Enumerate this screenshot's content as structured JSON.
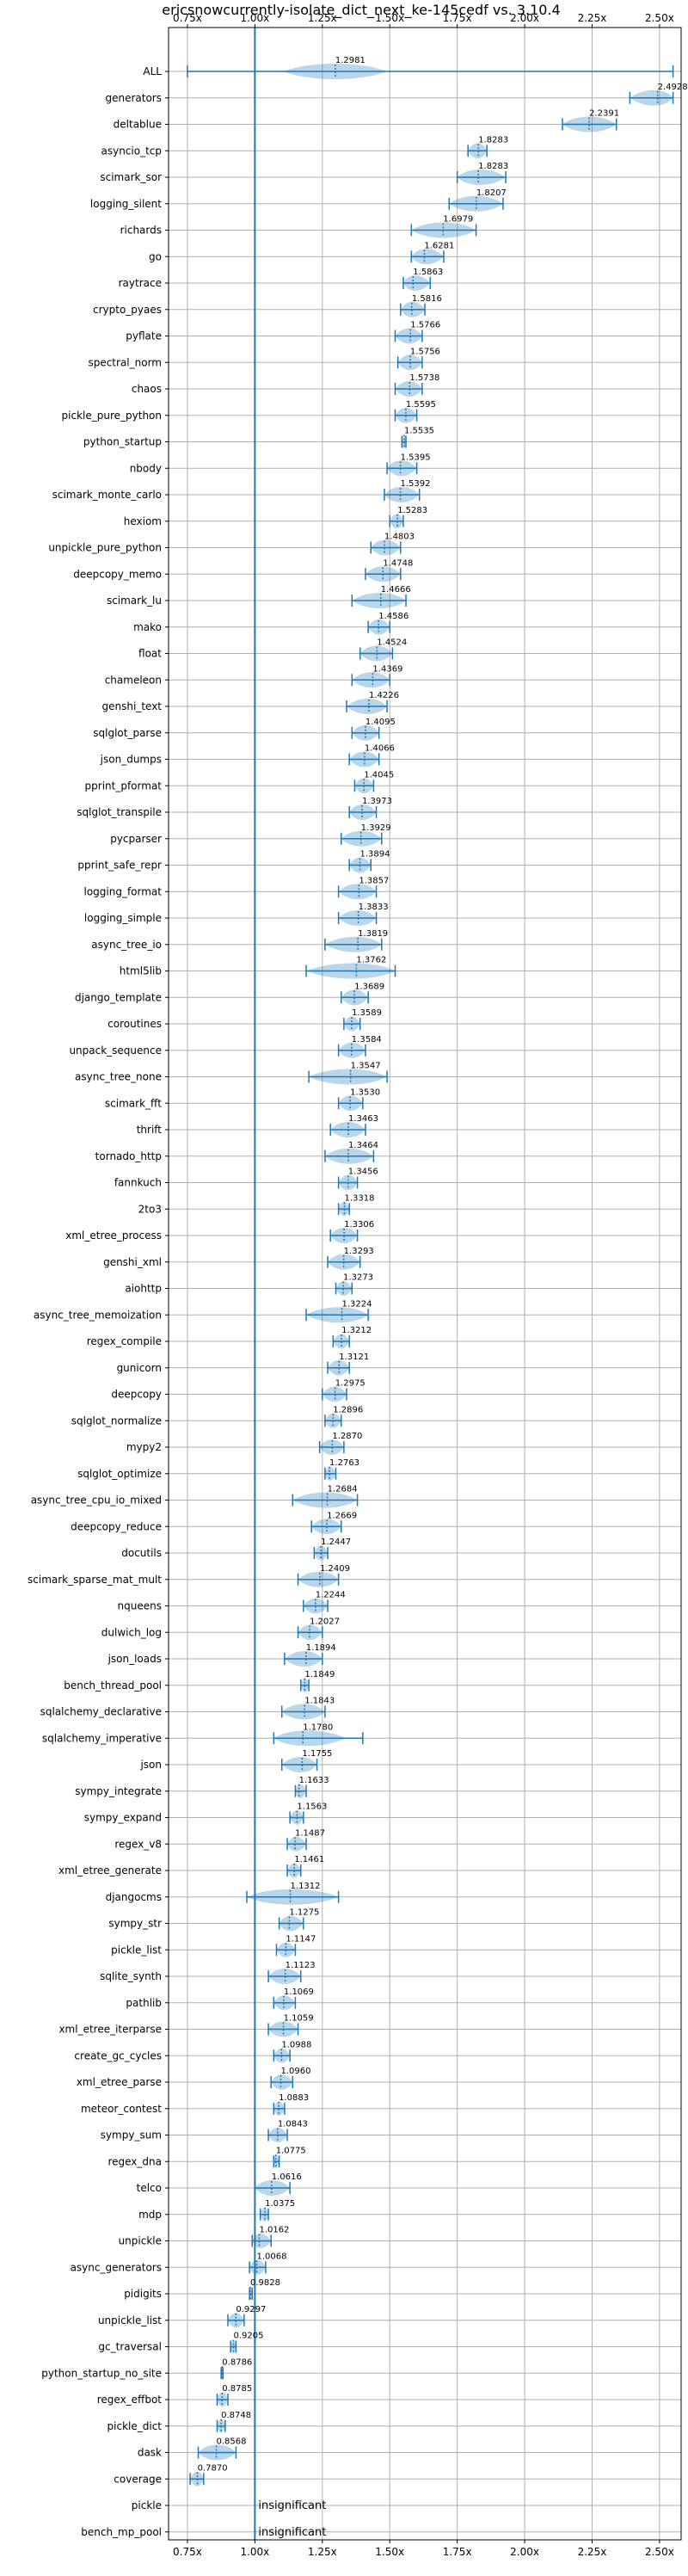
{
  "chart_data": {
    "type": "violin",
    "title": "ericsnowcurrently-isolate_dict_next_ke-145cedf vs. 3.10.4",
    "xlabel": "",
    "ylabel": "",
    "xlim": [
      0.68,
      2.58
    ],
    "xticks": [
      0.75,
      1.0,
      1.25,
      1.5,
      1.75,
      2.0,
      2.25,
      2.5
    ],
    "xtick_labels": [
      "0.75x",
      "1.00x",
      "1.25x",
      "1.50x",
      "1.75x",
      "2.00x",
      "2.25x",
      "2.50x"
    ],
    "reference_line": 1.0,
    "grid": true,
    "benchmarks": [
      {
        "name": "ALL",
        "value": 1.2981,
        "label": "1.2981",
        "low": 0.75,
        "high": 2.55,
        "spread": 0.12
      },
      {
        "name": "generators",
        "value": 2.4928,
        "label": "2.4928",
        "low": 2.39,
        "high": 2.55,
        "spread": 0.08
      },
      {
        "name": "deltablue",
        "value": 2.2391,
        "label": "2.2391",
        "low": 2.14,
        "high": 2.34,
        "spread": 0.1
      },
      {
        "name": "asyncio_tcp",
        "value": 1.8283,
        "label": "1.8283",
        "low": 1.79,
        "high": 1.86,
        "spread": 0.04
      },
      {
        "name": "scimark_sor",
        "value": 1.8283,
        "label": "1.8283",
        "low": 1.75,
        "high": 1.93,
        "spread": 0.09
      },
      {
        "name": "logging_silent",
        "value": 1.8207,
        "label": "1.8207",
        "low": 1.72,
        "high": 1.92,
        "spread": 0.1
      },
      {
        "name": "richards",
        "value": 1.6979,
        "label": "1.6979",
        "low": 1.58,
        "high": 1.82,
        "spread": 0.12
      },
      {
        "name": "go",
        "value": 1.6281,
        "label": "1.6281",
        "low": 1.58,
        "high": 1.7,
        "spread": 0.06
      },
      {
        "name": "raytrace",
        "value": 1.5863,
        "label": "1.5863",
        "low": 1.55,
        "high": 1.65,
        "spread": 0.05
      },
      {
        "name": "crypto_pyaes",
        "value": 1.5816,
        "label": "1.5816",
        "low": 1.54,
        "high": 1.63,
        "spread": 0.05
      },
      {
        "name": "pyflate",
        "value": 1.5766,
        "label": "1.5766",
        "low": 1.52,
        "high": 1.62,
        "spread": 0.05
      },
      {
        "name": "spectral_norm",
        "value": 1.5756,
        "label": "1.5756",
        "low": 1.53,
        "high": 1.62,
        "spread": 0.05
      },
      {
        "name": "chaos",
        "value": 1.5738,
        "label": "1.5738",
        "low": 1.52,
        "high": 1.62,
        "spread": 0.05
      },
      {
        "name": "pickle_pure_python",
        "value": 1.5595,
        "label": "1.5595",
        "low": 1.52,
        "high": 1.6,
        "spread": 0.04
      },
      {
        "name": "python_startup",
        "value": 1.5535,
        "label": "1.5535",
        "low": 1.545,
        "high": 1.56,
        "spread": 0.008
      },
      {
        "name": "nbody",
        "value": 1.5395,
        "label": "1.5395",
        "low": 1.49,
        "high": 1.6,
        "spread": 0.05
      },
      {
        "name": "scimark_monte_carlo",
        "value": 1.5392,
        "label": "1.5392",
        "low": 1.48,
        "high": 1.61,
        "spread": 0.06
      },
      {
        "name": "hexiom",
        "value": 1.5283,
        "label": "1.5283",
        "low": 1.5,
        "high": 1.55,
        "spread": 0.03
      },
      {
        "name": "unpickle_pure_python",
        "value": 1.4803,
        "label": "1.4803",
        "low": 1.43,
        "high": 1.54,
        "spread": 0.05
      },
      {
        "name": "deepcopy_memo",
        "value": 1.4748,
        "label": "1.4748",
        "low": 1.41,
        "high": 1.54,
        "spread": 0.06
      },
      {
        "name": "scimark_lu",
        "value": 1.4666,
        "label": "1.4666",
        "low": 1.36,
        "high": 1.56,
        "spread": 0.1
      },
      {
        "name": "mako",
        "value": 1.4586,
        "label": "1.4586",
        "low": 1.42,
        "high": 1.5,
        "spread": 0.04
      },
      {
        "name": "float",
        "value": 1.4524,
        "label": "1.4524",
        "low": 1.39,
        "high": 1.51,
        "spread": 0.06
      },
      {
        "name": "chameleon",
        "value": 1.4369,
        "label": "1.4369",
        "low": 1.36,
        "high": 1.5,
        "spread": 0.07
      },
      {
        "name": "genshi_text",
        "value": 1.4226,
        "label": "1.4226",
        "low": 1.34,
        "high": 1.49,
        "spread": 0.07
      },
      {
        "name": "sqlglot_parse",
        "value": 1.4095,
        "label": "1.4095",
        "low": 1.36,
        "high": 1.46,
        "spread": 0.05
      },
      {
        "name": "json_dumps",
        "value": 1.4066,
        "label": "1.4066",
        "low": 1.35,
        "high": 1.46,
        "spread": 0.05
      },
      {
        "name": "pprint_pformat",
        "value": 1.4045,
        "label": "1.4045",
        "low": 1.37,
        "high": 1.44,
        "spread": 0.04
      },
      {
        "name": "sqlglot_transpile",
        "value": 1.3973,
        "label": "1.3973",
        "low": 1.35,
        "high": 1.45,
        "spread": 0.05
      },
      {
        "name": "pycparser",
        "value": 1.3929,
        "label": "1.3929",
        "low": 1.32,
        "high": 1.47,
        "spread": 0.07
      },
      {
        "name": "pprint_safe_repr",
        "value": 1.3894,
        "label": "1.3894",
        "low": 1.35,
        "high": 1.43,
        "spread": 0.04
      },
      {
        "name": "logging_format",
        "value": 1.3857,
        "label": "1.3857",
        "low": 1.31,
        "high": 1.45,
        "spread": 0.06
      },
      {
        "name": "logging_simple",
        "value": 1.3833,
        "label": "1.3833",
        "low": 1.31,
        "high": 1.45,
        "spread": 0.06
      },
      {
        "name": "async_tree_io",
        "value": 1.3819,
        "label": "1.3819",
        "low": 1.26,
        "high": 1.47,
        "spread": 0.09
      },
      {
        "name": "html5lib",
        "value": 1.3762,
        "label": "1.3762",
        "low": 1.19,
        "high": 1.52,
        "spread": 0.14
      },
      {
        "name": "django_template",
        "value": 1.3689,
        "label": "1.3689",
        "low": 1.32,
        "high": 1.42,
        "spread": 0.05
      },
      {
        "name": "coroutines",
        "value": 1.3589,
        "label": "1.3589",
        "low": 1.33,
        "high": 1.39,
        "spread": 0.03
      },
      {
        "name": "unpack_sequence",
        "value": 1.3584,
        "label": "1.3584",
        "low": 1.31,
        "high": 1.41,
        "spread": 0.05
      },
      {
        "name": "async_tree_none",
        "value": 1.3547,
        "label": "1.3547",
        "low": 1.2,
        "high": 1.49,
        "spread": 0.12
      },
      {
        "name": "scimark_fft",
        "value": 1.353,
        "label": "1.3530",
        "low": 1.31,
        "high": 1.4,
        "spread": 0.04
      },
      {
        "name": "thrift",
        "value": 1.3463,
        "label": "1.3463",
        "low": 1.28,
        "high": 1.41,
        "spread": 0.06
      },
      {
        "name": "tornado_http",
        "value": 1.3464,
        "label": "1.3464",
        "low": 1.26,
        "high": 1.44,
        "spread": 0.08
      },
      {
        "name": "fannkuch",
        "value": 1.3456,
        "label": "1.3456",
        "low": 1.31,
        "high": 1.38,
        "spread": 0.04
      },
      {
        "name": "2to3",
        "value": 1.3318,
        "label": "1.3318",
        "low": 1.31,
        "high": 1.35,
        "spread": 0.02
      },
      {
        "name": "xml_etree_process",
        "value": 1.3306,
        "label": "1.3306",
        "low": 1.28,
        "high": 1.38,
        "spread": 0.05
      },
      {
        "name": "genshi_xml",
        "value": 1.3293,
        "label": "1.3293",
        "low": 1.27,
        "high": 1.39,
        "spread": 0.06
      },
      {
        "name": "aiohttp",
        "value": 1.3273,
        "label": "1.3273",
        "low": 1.3,
        "high": 1.36,
        "spread": 0.03
      },
      {
        "name": "async_tree_memoization",
        "value": 1.3224,
        "label": "1.3224",
        "low": 1.19,
        "high": 1.42,
        "spread": 0.1
      },
      {
        "name": "regex_compile",
        "value": 1.3212,
        "label": "1.3212",
        "low": 1.29,
        "high": 1.35,
        "spread": 0.03
      },
      {
        "name": "gunicorn",
        "value": 1.3121,
        "label": "1.3121",
        "low": 1.27,
        "high": 1.35,
        "spread": 0.04
      },
      {
        "name": "deepcopy",
        "value": 1.2975,
        "label": "1.2975",
        "low": 1.25,
        "high": 1.34,
        "spread": 0.04
      },
      {
        "name": "sqlglot_normalize",
        "value": 1.2896,
        "label": "1.2896",
        "low": 1.26,
        "high": 1.32,
        "spread": 0.03
      },
      {
        "name": "mypy2",
        "value": 1.287,
        "label": "1.2870",
        "low": 1.24,
        "high": 1.33,
        "spread": 0.04
      },
      {
        "name": "sqlglot_optimize",
        "value": 1.2763,
        "label": "1.2763",
        "low": 1.26,
        "high": 1.3,
        "spread": 0.02
      },
      {
        "name": "async_tree_cpu_io_mixed",
        "value": 1.2684,
        "label": "1.2684",
        "low": 1.14,
        "high": 1.38,
        "spread": 0.1
      },
      {
        "name": "deepcopy_reduce",
        "value": 1.2669,
        "label": "1.2669",
        "low": 1.21,
        "high": 1.32,
        "spread": 0.05
      },
      {
        "name": "docutils",
        "value": 1.2447,
        "label": "1.2447",
        "low": 1.22,
        "high": 1.27,
        "spread": 0.03
      },
      {
        "name": "scimark_sparse_mat_mult",
        "value": 1.2409,
        "label": "1.2409",
        "low": 1.16,
        "high": 1.31,
        "spread": 0.06
      },
      {
        "name": "nqueens",
        "value": 1.2244,
        "label": "1.2244",
        "low": 1.18,
        "high": 1.27,
        "spread": 0.04
      },
      {
        "name": "dulwich_log",
        "value": 1.2027,
        "label": "1.2027",
        "low": 1.16,
        "high": 1.25,
        "spread": 0.04
      },
      {
        "name": "json_loads",
        "value": 1.1894,
        "label": "1.1894",
        "low": 1.11,
        "high": 1.25,
        "spread": 0.05
      },
      {
        "name": "bench_thread_pool",
        "value": 1.1849,
        "label": "1.1849",
        "low": 1.17,
        "high": 1.2,
        "spread": 0.02
      },
      {
        "name": "sqlalchemy_declarative",
        "value": 1.1843,
        "label": "1.1843",
        "low": 1.1,
        "high": 1.26,
        "spread": 0.07
      },
      {
        "name": "sqlalchemy_imperative",
        "value": 1.178,
        "label": "1.1780",
        "low": 1.07,
        "high": 1.4,
        "spread": 0.1
      },
      {
        "name": "json",
        "value": 1.1755,
        "label": "1.1755",
        "low": 1.1,
        "high": 1.23,
        "spread": 0.05
      },
      {
        "name": "sympy_integrate",
        "value": 1.1633,
        "label": "1.1633",
        "low": 1.15,
        "high": 1.19,
        "spread": 0.02
      },
      {
        "name": "sympy_expand",
        "value": 1.1563,
        "label": "1.1563",
        "low": 1.13,
        "high": 1.18,
        "spread": 0.02
      },
      {
        "name": "regex_v8",
        "value": 1.1487,
        "label": "1.1487",
        "low": 1.12,
        "high": 1.19,
        "spread": 0.03
      },
      {
        "name": "xml_etree_generate",
        "value": 1.1461,
        "label": "1.1461",
        "low": 1.12,
        "high": 1.17,
        "spread": 0.03
      },
      {
        "name": "djangocms",
        "value": 1.1312,
        "label": "1.1312",
        "low": 0.97,
        "high": 1.31,
        "spread": 0.12
      },
      {
        "name": "sympy_str",
        "value": 1.1275,
        "label": "1.1275",
        "low": 1.09,
        "high": 1.18,
        "spread": 0.04
      },
      {
        "name": "pickle_list",
        "value": 1.1147,
        "label": "1.1147",
        "low": 1.08,
        "high": 1.15,
        "spread": 0.03
      },
      {
        "name": "sqlite_synth",
        "value": 1.1123,
        "label": "1.1123",
        "low": 1.05,
        "high": 1.17,
        "spread": 0.05
      },
      {
        "name": "pathlib",
        "value": 1.1069,
        "label": "1.1069",
        "low": 1.07,
        "high": 1.15,
        "spread": 0.03
      },
      {
        "name": "xml_etree_iterparse",
        "value": 1.1059,
        "label": "1.1059",
        "low": 1.05,
        "high": 1.16,
        "spread": 0.05
      },
      {
        "name": "create_gc_cycles",
        "value": 1.0988,
        "label": "1.0988",
        "low": 1.07,
        "high": 1.13,
        "spread": 0.03
      },
      {
        "name": "xml_etree_parse",
        "value": 1.096,
        "label": "1.0960",
        "low": 1.06,
        "high": 1.14,
        "spread": 0.04
      },
      {
        "name": "meteor_contest",
        "value": 1.0883,
        "label": "1.0883",
        "low": 1.07,
        "high": 1.11,
        "spread": 0.02
      },
      {
        "name": "sympy_sum",
        "value": 1.0843,
        "label": "1.0843",
        "low": 1.05,
        "high": 1.12,
        "spread": 0.03
      },
      {
        "name": "regex_dna",
        "value": 1.0775,
        "label": "1.0775",
        "low": 1.07,
        "high": 1.09,
        "spread": 0.01
      },
      {
        "name": "telco",
        "value": 1.0616,
        "label": "1.0616",
        "low": 1.0,
        "high": 1.13,
        "spread": 0.05
      },
      {
        "name": "mdp",
        "value": 1.0375,
        "label": "1.0375",
        "low": 1.02,
        "high": 1.05,
        "spread": 0.02
      },
      {
        "name": "unpickle",
        "value": 1.0162,
        "label": "1.0162",
        "low": 0.99,
        "high": 1.06,
        "spread": 0.03
      },
      {
        "name": "async_generators",
        "value": 1.0068,
        "label": "1.0068",
        "low": 0.98,
        "high": 1.04,
        "spread": 0.03
      },
      {
        "name": "pidigits",
        "value": 0.9828,
        "label": "0.9828",
        "low": 0.98,
        "high": 0.99,
        "spread": 0.005
      },
      {
        "name": "unpickle_list",
        "value": 0.9297,
        "label": "0.9297",
        "low": 0.9,
        "high": 0.96,
        "spread": 0.03
      },
      {
        "name": "gc_traversal",
        "value": 0.9205,
        "label": "0.9205",
        "low": 0.91,
        "high": 0.93,
        "spread": 0.01
      },
      {
        "name": "python_startup_no_site",
        "value": 0.8786,
        "label": "0.8786",
        "low": 0.875,
        "high": 0.882,
        "spread": 0.006
      },
      {
        "name": "regex_effbot",
        "value": 0.8785,
        "label": "0.8785",
        "low": 0.86,
        "high": 0.9,
        "spread": 0.02
      },
      {
        "name": "pickle_dict",
        "value": 0.8748,
        "label": "0.8748",
        "low": 0.86,
        "high": 0.89,
        "spread": 0.015
      },
      {
        "name": "dask",
        "value": 0.8568,
        "label": "0.8568",
        "low": 0.79,
        "high": 0.93,
        "spread": 0.05
      },
      {
        "name": "coverage",
        "value": 0.787,
        "label": "0.7870",
        "low": 0.76,
        "high": 0.81,
        "spread": 0.025
      },
      {
        "name": "pickle",
        "value": null,
        "label": "insignificant",
        "low": null,
        "high": null,
        "spread": 0
      },
      {
        "name": "bench_mp_pool",
        "value": null,
        "label": "insignificant",
        "low": null,
        "high": null,
        "spread": 0
      }
    ]
  }
}
